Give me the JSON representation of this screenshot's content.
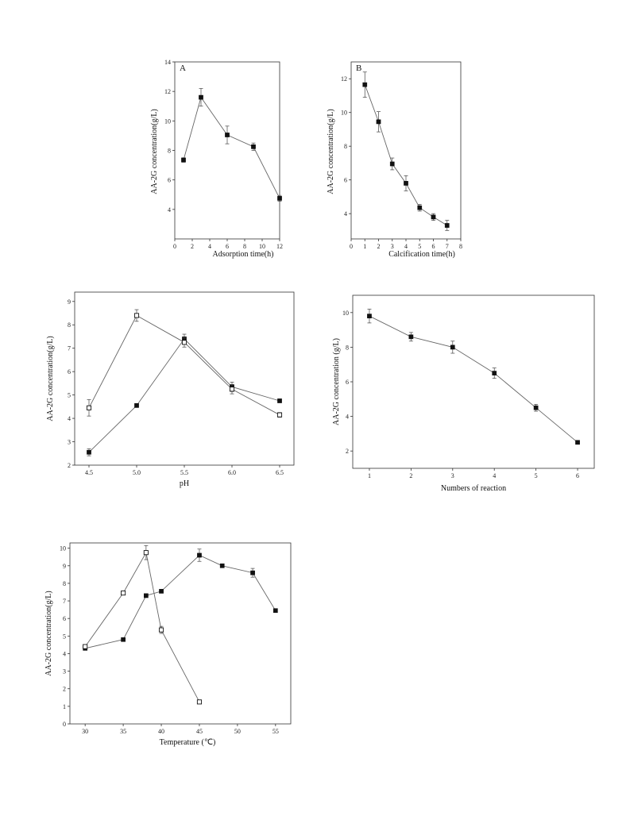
{
  "chart_data": [
    {
      "type": "line",
      "panel_label": "A",
      "xlabel": "Adsorption time(h)",
      "ylabel": "AA-2G concentration(g/L)",
      "xlim": [
        0,
        12
      ],
      "ylim": [
        2,
        14
      ],
      "xticks": [
        0,
        2,
        4,
        6,
        8,
        10,
        12
      ],
      "yticks": [
        4,
        6,
        8,
        10,
        12,
        14
      ],
      "series": [
        {
          "marker": "filled-square",
          "x": [
            1,
            3,
            6,
            9,
            12
          ],
          "values": [
            7.35,
            11.6,
            9.05,
            8.25,
            4.75
          ],
          "err": [
            0.15,
            0.6,
            0.6,
            0.25,
            0.2
          ]
        }
      ]
    },
    {
      "type": "line",
      "panel_label": "B",
      "xlabel": "Calcification time(h)",
      "ylabel": "AA-2G concentration(g/L)",
      "xlim": [
        0,
        8
      ],
      "ylim": [
        2.5,
        13
      ],
      "xticks": [
        0,
        1,
        2,
        3,
        4,
        5,
        6,
        7,
        8
      ],
      "yticks": [
        4,
        6,
        8,
        10,
        12
      ],
      "series": [
        {
          "marker": "filled-square",
          "x": [
            1,
            2,
            3,
            4,
            5,
            6,
            7
          ],
          "values": [
            11.65,
            9.45,
            6.95,
            5.8,
            4.35,
            3.8,
            3.3
          ],
          "err": [
            0.75,
            0.6,
            0.35,
            0.45,
            0.2,
            0.2,
            0.3
          ]
        }
      ]
    },
    {
      "type": "line",
      "panel_label": "",
      "xlabel": "pH",
      "ylabel": "AA-2G concentration(g/L)",
      "xlim": [
        4.35,
        6.65
      ],
      "ylim": [
        2,
        9.4
      ],
      "xticks": [
        4.5,
        5.0,
        5.5,
        6.0,
        6.5
      ],
      "xticklabels": [
        "4.5",
        "5.0",
        "5.5",
        "6.0",
        "6.5"
      ],
      "yticks": [
        2,
        3,
        4,
        5,
        6,
        7,
        8,
        9
      ],
      "series": [
        {
          "marker": "filled-square",
          "x": [
            4.5,
            5.0,
            5.5,
            6.0,
            6.5
          ],
          "values": [
            2.55,
            4.55,
            7.4,
            5.35,
            4.75
          ],
          "err": [
            0.15,
            0.05,
            0.2,
            0.2,
            0.05
          ]
        },
        {
          "marker": "open-square",
          "x": [
            4.5,
            5.0,
            5.5,
            6.0,
            6.5
          ],
          "values": [
            4.45,
            8.4,
            7.25,
            5.25,
            4.15
          ],
          "err": [
            0.35,
            0.25,
            0.2,
            0.2,
            0.1
          ]
        }
      ]
    },
    {
      "type": "line",
      "panel_label": "",
      "xlabel": "Numbers of reaction",
      "ylabel": "AA-2G concentration (g/L)",
      "xlim": [
        0.6,
        6.4
      ],
      "ylim": [
        1,
        11
      ],
      "xticks": [
        1,
        2,
        3,
        4,
        5,
        6
      ],
      "yticks": [
        2,
        4,
        6,
        8,
        10
      ],
      "series": [
        {
          "marker": "filled-square",
          "x": [
            1,
            2,
            3,
            4,
            5,
            6
          ],
          "values": [
            9.8,
            8.6,
            8.0,
            6.5,
            4.5,
            2.5
          ],
          "err": [
            0.4,
            0.25,
            0.35,
            0.3,
            0.2,
            0.1
          ]
        }
      ]
    },
    {
      "type": "line",
      "panel_label": "",
      "xlabel": "Temperature (℃)",
      "ylabel": "AA-2G concentration(g/L)",
      "xlim": [
        28,
        57
      ],
      "ylim": [
        0,
        10.3
      ],
      "xticks": [
        30,
        35,
        40,
        45,
        50,
        55
      ],
      "yticks": [
        0,
        1,
        2,
        3,
        4,
        5,
        6,
        7,
        8,
        9,
        10
      ],
      "series": [
        {
          "marker": "filled-square",
          "x": [
            30,
            35,
            38,
            40,
            45,
            48,
            52,
            55
          ],
          "values": [
            4.3,
            4.8,
            7.3,
            7.55,
            9.6,
            9.0,
            8.6,
            6.45
          ],
          "err": [
            0.05,
            0.05,
            0.05,
            0.05,
            0.35,
            0.05,
            0.25,
            0.05
          ]
        },
        {
          "marker": "open-square",
          "x": [
            30,
            35,
            38,
            40,
            45
          ],
          "values": [
            4.4,
            7.45,
            9.75,
            5.35,
            1.25
          ],
          "err": [
            0.1,
            0.05,
            0.4,
            0.2,
            0.05
          ]
        }
      ]
    }
  ]
}
